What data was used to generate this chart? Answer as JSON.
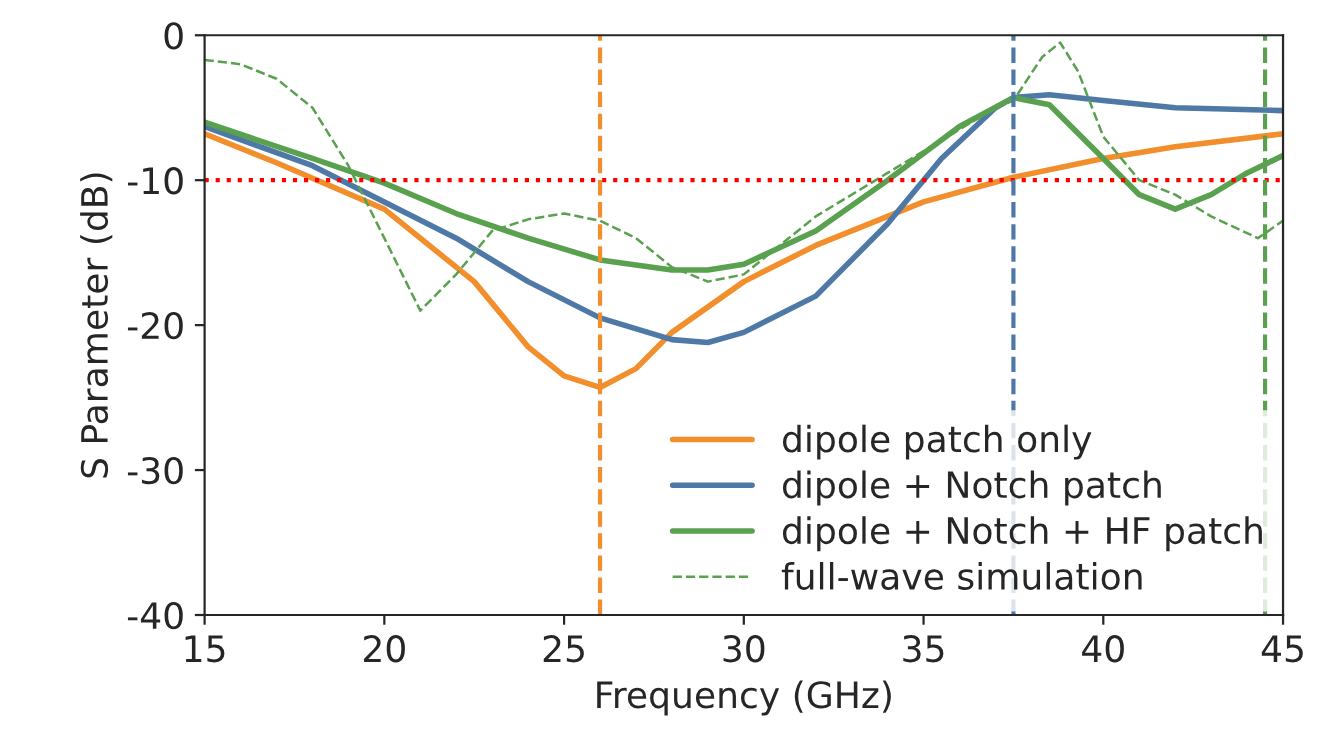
{
  "chart_data": {
    "type": "line",
    "xlabel": "Frequency (GHz)",
    "ylabel": "S Parameter (dB)",
    "xlim": [
      15,
      45
    ],
    "ylim": [
      -40,
      0
    ],
    "xticks": [
      15,
      20,
      25,
      30,
      35,
      40,
      45
    ],
    "yticks": [
      -40,
      -30,
      -20,
      -10,
      0
    ],
    "grid": false,
    "legend": "bottom right",
    "series": [
      {
        "name": "dipole patch only",
        "color": "#f28e2b",
        "line_style": "solid",
        "x": [
          15,
          17,
          20,
          22.5,
          24,
          25,
          26,
          27,
          28,
          30,
          32,
          35,
          37.5,
          40,
          42,
          45
        ],
        "values": [
          -6.8,
          -8.8,
          -12,
          -17,
          -21.5,
          -23.5,
          -24.3,
          -23,
          -20.5,
          -17,
          -14.5,
          -11.5,
          -9.8,
          -8.5,
          -7.7,
          -6.8
        ]
      },
      {
        "name": "dipole + Notch patch",
        "color": "#4e79a7",
        "line_style": "solid",
        "x": [
          15,
          18,
          20,
          22,
          24,
          26,
          28,
          29,
          30,
          32,
          34,
          35.5,
          37,
          37.5,
          38.5,
          40,
          42,
          45
        ],
        "values": [
          -6.3,
          -9,
          -11.5,
          -14,
          -17,
          -19.5,
          -21,
          -21.2,
          -20.5,
          -18,
          -13,
          -8.5,
          -5,
          -4.3,
          -4.1,
          -4.5,
          -5,
          -5.2
        ]
      },
      {
        "name": "dipole + Notch + HF patch",
        "color": "#59a14f",
        "line_style": "solid",
        "x": [
          15,
          18,
          20,
          22,
          24,
          26,
          28,
          29,
          30,
          32,
          34,
          36,
          37.5,
          38.5,
          40,
          41,
          42,
          43,
          44,
          45
        ],
        "values": [
          -6,
          -8.5,
          -10.2,
          -12.3,
          -14,
          -15.5,
          -16.2,
          -16.2,
          -15.8,
          -13.5,
          -10,
          -6.3,
          -4.3,
          -4.8,
          -8.5,
          -11,
          -12,
          -11,
          -9.5,
          -8.3
        ]
      },
      {
        "name": "full-wave simulation",
        "color": "#59a14f",
        "line_style": "dashed",
        "x": [
          15,
          16,
          17,
          18,
          19,
          20,
          21,
          22,
          23,
          24,
          25,
          26,
          27,
          28,
          29,
          30,
          31,
          32,
          34,
          36,
          37,
          37.5,
          38.3,
          38.8,
          39.3,
          40,
          41,
          42,
          43,
          44.3,
          45
        ],
        "values": [
          -1.7,
          -2,
          -3,
          -5,
          -9,
          -14,
          -19,
          -16.5,
          -13.5,
          -12.7,
          -12.3,
          -12.8,
          -14,
          -16,
          -17,
          -16.5,
          -14.5,
          -12.5,
          -9.5,
          -6.5,
          -5,
          -4.5,
          -1.5,
          -0.5,
          -2.5,
          -7,
          -10,
          -11,
          -12.5,
          -14,
          -12.8
        ]
      }
    ],
    "ref_lines": [
      {
        "axis": "y",
        "value": -10,
        "color": "#ff0000",
        "line_style": "dotted"
      },
      {
        "axis": "x",
        "value": 26,
        "color": "#f28e2b",
        "line_style": "dashed"
      },
      {
        "axis": "x",
        "value": 37.5,
        "color": "#4e79a7",
        "line_style": "dashed"
      },
      {
        "axis": "x",
        "value": 44.5,
        "color": "#59a14f",
        "line_style": "dashed"
      }
    ]
  }
}
